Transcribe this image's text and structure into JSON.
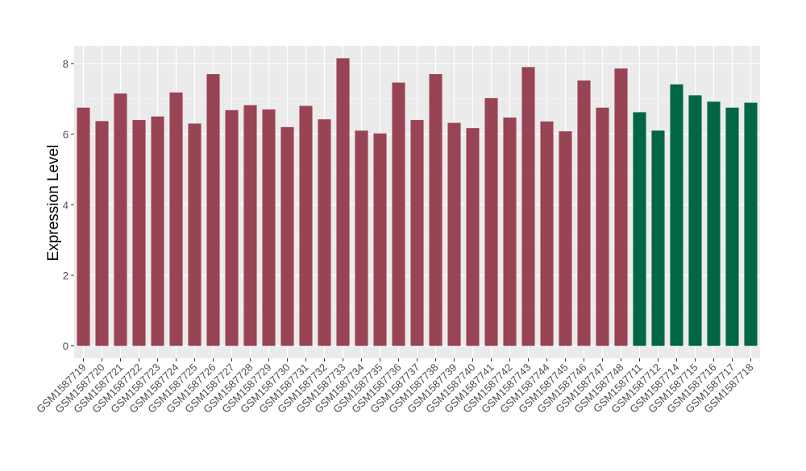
{
  "chart_data": {
    "type": "bar",
    "ylabel": "Expression Level",
    "xlabel": "",
    "ylim": [
      -0.35,
      8.5
    ],
    "yticks": [
      0,
      2,
      4,
      6,
      8
    ],
    "ytick_labels": [
      "0",
      "2",
      "4",
      "6",
      "8"
    ],
    "grid": true,
    "categories": [
      "GSM1587719",
      "GSM1587720",
      "GSM1587721",
      "GSM1587722",
      "GSM1587723",
      "GSM1587724",
      "GSM1587725",
      "GSM1587726",
      "GSM1587727",
      "GSM1587728",
      "GSM1587729",
      "GSM1587730",
      "GSM1587731",
      "GSM1587732",
      "GSM1587733",
      "GSM1587734",
      "GSM1587735",
      "GSM1587736",
      "GSM1587737",
      "GSM1587738",
      "GSM1587739",
      "GSM1587740",
      "GSM1587741",
      "GSM1587742",
      "GSM1587743",
      "GSM1587744",
      "GSM1587745",
      "GSM1587746",
      "GSM1587747",
      "GSM1587748",
      "GSM1587711",
      "GSM1587712",
      "GSM1587714",
      "GSM1587715",
      "GSM1587716",
      "GSM1587717",
      "GSM1587718"
    ],
    "values": [
      6.75,
      6.37,
      7.15,
      6.4,
      6.5,
      7.18,
      6.3,
      7.7,
      6.68,
      6.82,
      6.7,
      6.2,
      6.8,
      6.42,
      8.15,
      6.1,
      6.02,
      7.46,
      6.4,
      7.7,
      6.32,
      6.17,
      7.02,
      6.47,
      7.9,
      6.36,
      6.08,
      7.52,
      6.75,
      7.86,
      6.62,
      6.1,
      7.41,
      7.1,
      6.92,
      6.75,
      6.89
    ],
    "groups": [
      "g1",
      "g1",
      "g1",
      "g1",
      "g1",
      "g1",
      "g1",
      "g1",
      "g1",
      "g1",
      "g1",
      "g1",
      "g1",
      "g1",
      "g1",
      "g1",
      "g1",
      "g1",
      "g1",
      "g1",
      "g1",
      "g1",
      "g1",
      "g1",
      "g1",
      "g1",
      "g1",
      "g1",
      "g1",
      "g1",
      "g2",
      "g2",
      "g2",
      "g2",
      "g2",
      "g2",
      "g2"
    ],
    "colors": {
      "g1": "#994455",
      "g2": "#006644",
      "panel_bg": "#ebebeb",
      "grid_major": "#ffffff",
      "grid_minor": "#f4f4f4",
      "axis_text": "#4d4d4d",
      "title_text": "#000000"
    }
  }
}
